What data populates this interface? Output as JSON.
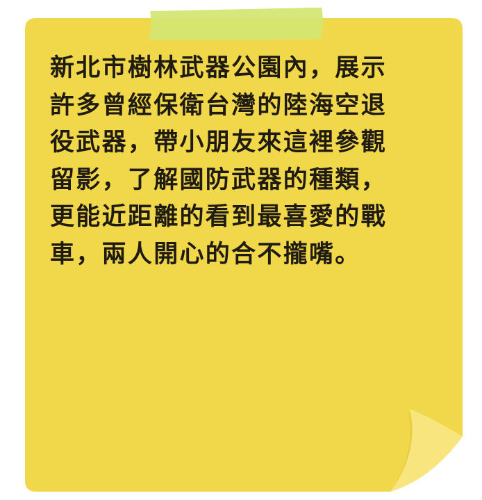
{
  "note": {
    "text": "新北市樹林武器公園內，展示\n許多曾經保衛台灣的陸海空退\n役武器，帶小朋友來這裡參觀\n留影，了解國防武器的種類，\n更能近距離的看到最喜愛的戰\n車，兩人開心的合不攏嘴。",
    "paper_color": "#f1d84b",
    "curl_color": "#f9e57e",
    "tape_color": "#d3e670"
  }
}
